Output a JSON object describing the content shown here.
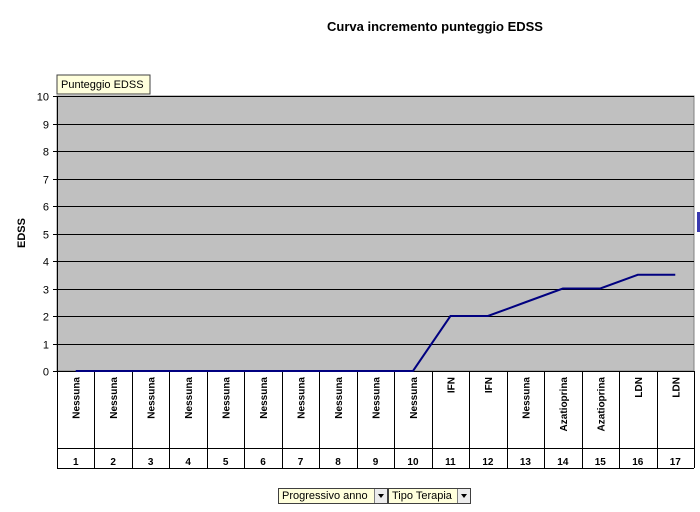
{
  "title": "Curva incremento punteggio EDSS",
  "data_field_label": "Punteggio EDSS",
  "row_fields": [
    {
      "label": "Progressivo anno"
    },
    {
      "label": "Tipo Terapia"
    }
  ],
  "colors": {
    "line": "#000080",
    "plot_bg": "#c0c0c0",
    "field_bg": "#ffffdc"
  },
  "chart_data": {
    "type": "line",
    "title": "Curva incremento punteggio EDSS",
    "ylabel": "EDSS",
    "xlabel": "",
    "ylim": [
      0,
      10
    ],
    "yticks": [
      "0",
      "1",
      "2",
      "3",
      "4",
      "5",
      "6",
      "7",
      "8",
      "9",
      "10"
    ],
    "grid": true,
    "categories": [
      "1",
      "2",
      "3",
      "4",
      "5",
      "6",
      "7",
      "8",
      "9",
      "10",
      "11",
      "12",
      "13",
      "14",
      "15",
      "16",
      "17"
    ],
    "therapies": [
      "Nessuna",
      "Nessuna",
      "Nessuna",
      "Nessuna",
      "Nessuna",
      "Nessuna",
      "Nessuna",
      "Nessuna",
      "Nessuna",
      "Nessuna",
      "IFN",
      "IFN",
      "Nessuna",
      "Azatioprina",
      "Azatioprina",
      "LDN",
      "LDN"
    ],
    "series": [
      {
        "values": [
          0,
          0,
          0,
          0,
          0,
          0,
          0,
          0,
          0,
          0,
          2,
          2,
          2.5,
          3,
          3,
          3.5,
          3.5
        ]
      }
    ]
  }
}
